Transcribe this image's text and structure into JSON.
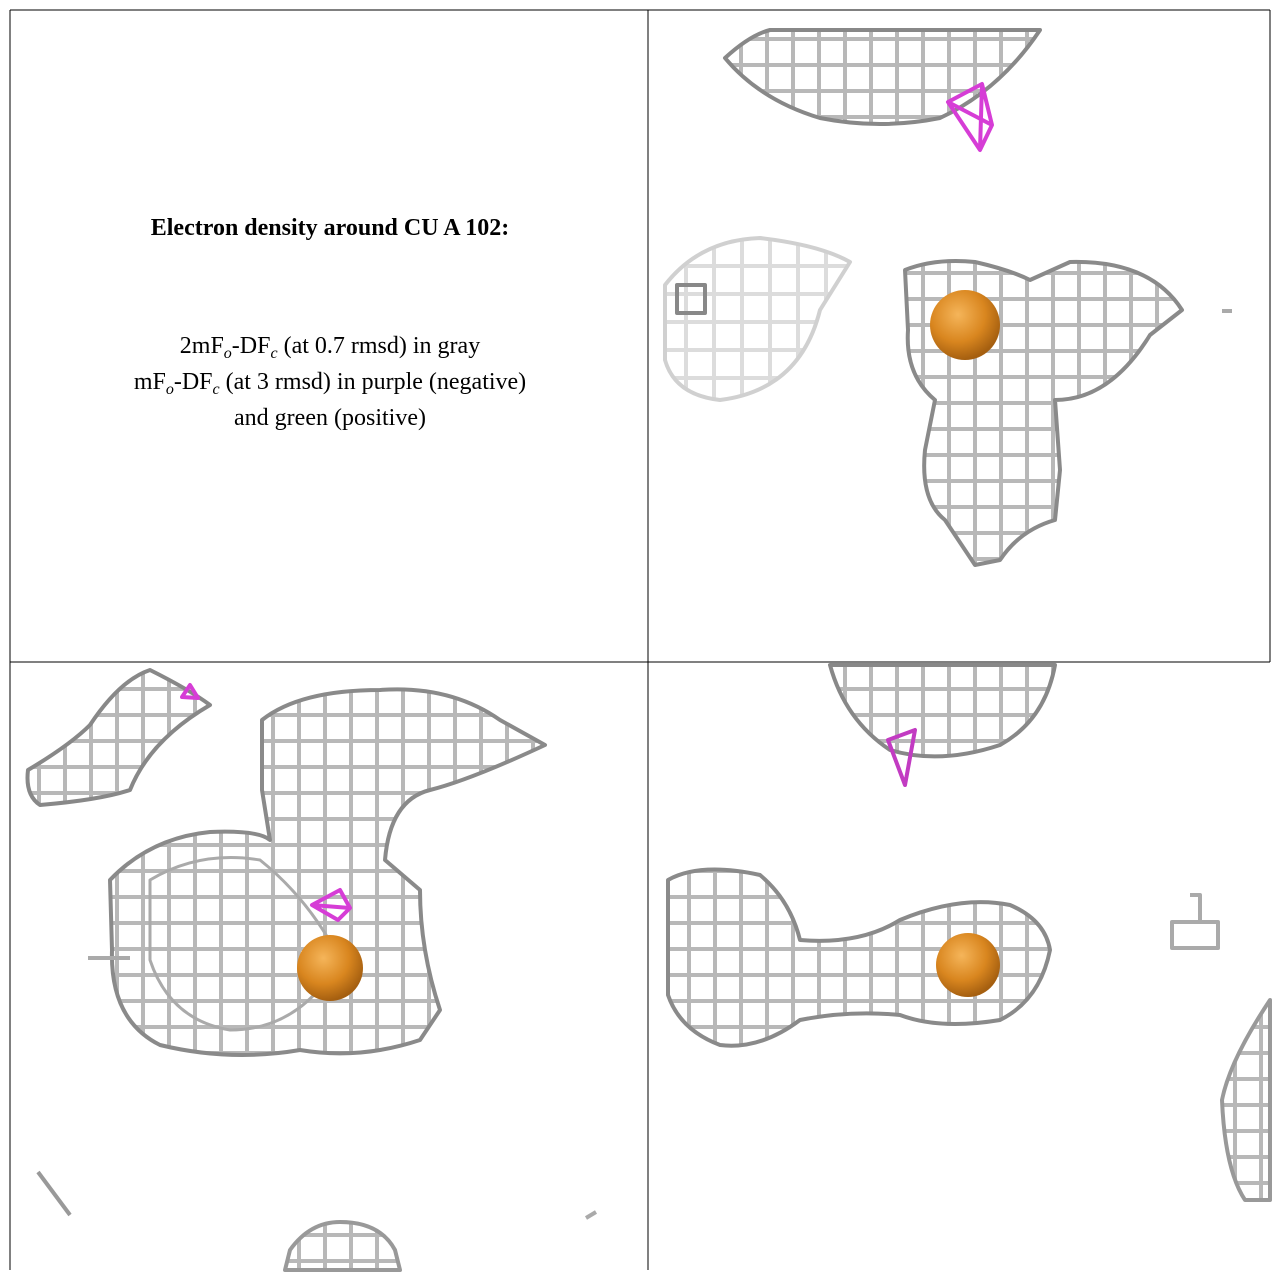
{
  "panel_text": {
    "title": "Electron density around CU A 102:",
    "lines": [
      [
        "2mF",
        "o",
        "-DF",
        "c",
        " (at 0.7 rmsd) in gray"
      ],
      [
        "mF",
        "o",
        "-DF",
        "c",
        " (at 3 rmsd) in purple (negative)"
      ],
      [
        "and green (positive)"
      ]
    ]
  }
}
